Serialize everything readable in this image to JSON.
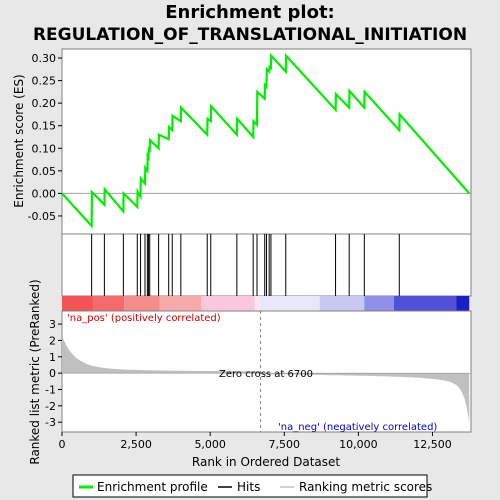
{
  "chart_data": {
    "type": "line",
    "title_line1": "Enrichment plot:",
    "title_line2": "REGULATION_OF_TRANSLATIONAL_INITIATION",
    "xlabel": "Rank in Ordered Dataset",
    "ylabel_top": "Enrichment score (ES)",
    "ylabel_bottom": "Ranked list metric (PreRanked)",
    "x_ticks": [
      0,
      2500,
      5000,
      7500,
      10000,
      12500
    ],
    "x_tick_labels": [
      "0",
      "2,500",
      "5,000",
      "7,500",
      "10,000",
      "12,500"
    ],
    "xlim": [
      0,
      13800
    ],
    "es_ylim": [
      -0.09,
      0.32
    ],
    "es_ticks": [
      -0.05,
      0.0,
      0.05,
      0.1,
      0.15,
      0.2,
      0.25,
      0.3
    ],
    "es_tick_labels": [
      "-0.05",
      "0.00",
      "0.05",
      "0.10",
      "0.15",
      "0.20",
      "0.25",
      "0.30"
    ],
    "metric_ylim": [
      -3.6,
      3.8
    ],
    "metric_ticks": [
      -3,
      -2,
      -1,
      0,
      1,
      2,
      3
    ],
    "metric_tick_labels": [
      "-3",
      "-2",
      "-1",
      "0",
      "1",
      "2",
      "3"
    ],
    "hits": [
      1000,
      1430,
      2070,
      2540,
      2650,
      2800,
      2880,
      2920,
      2960,
      3260,
      3600,
      3720,
      4010,
      4900,
      5020,
      5900,
      6450,
      6580,
      6840,
      6900,
      6990,
      7050,
      7550,
      9230,
      9690,
      10200,
      11380
    ],
    "es_curve": {
      "x": [
        0,
        1000,
        1010,
        1430,
        1440,
        2070,
        2080,
        2540,
        2550,
        2650,
        2660,
        2800,
        2810,
        2880,
        2890,
        2920,
        2930,
        2960,
        2970,
        3260,
        3270,
        3600,
        3610,
        3720,
        3730,
        4010,
        4020,
        4900,
        4910,
        5020,
        5030,
        5900,
        5910,
        6450,
        6460,
        6580,
        6590,
        6840,
        6850,
        6900,
        6910,
        6990,
        7000,
        7050,
        7060,
        7550,
        7560,
        9230,
        9240,
        9690,
        9700,
        10200,
        10210,
        11380,
        11390,
        13740
      ],
      "es": [
        0.0,
        -0.072,
        0.003,
        -0.025,
        0.009,
        -0.04,
        0.0,
        -0.03,
        0.004,
        -0.007,
        0.033,
        0.022,
        0.057,
        0.05,
        0.083,
        0.08,
        0.098,
        0.096,
        0.118,
        0.1,
        0.13,
        0.12,
        0.147,
        0.14,
        0.172,
        0.16,
        0.19,
        0.13,
        0.165,
        0.16,
        0.193,
        0.13,
        0.165,
        0.125,
        0.16,
        0.152,
        0.225,
        0.21,
        0.24,
        0.236,
        0.275,
        0.27,
        0.28,
        0.278,
        0.305,
        0.27,
        0.305,
        0.185,
        0.22,
        0.19,
        0.227,
        0.19,
        0.225,
        0.14,
        0.175,
        0.0
      ]
    },
    "zero_cross_rank": 6700,
    "zero_cross_label": "Zero cross at 6700",
    "pos_label": "'na_pos' (positively correlated)",
    "neg_label": "'na_neg' (negatively correlated)",
    "legend": {
      "entries": [
        {
          "label": "Enrichment profile",
          "color": "#00ee00"
        },
        {
          "label": "Hits",
          "color": "#000000"
        },
        {
          "label": "Ranking metric scores",
          "color": "#c0c0c0"
        }
      ]
    },
    "colors": {
      "es_line": "#00ee00",
      "hit": "#000000",
      "metric_fill": "#c0c0c0",
      "pos_text": "#cc0000",
      "neg_text": "#0000cc",
      "background": "#e8e8e8"
    }
  }
}
